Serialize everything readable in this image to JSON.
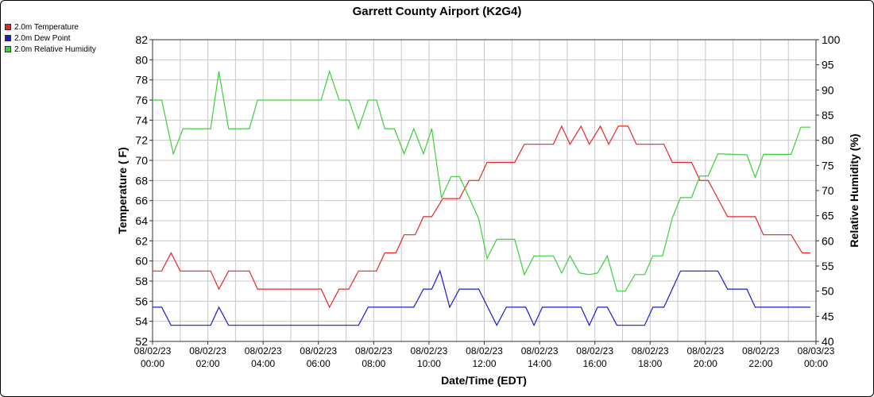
{
  "chart_data": {
    "type": "line",
    "title": "Garrett County Airport (K2G4)",
    "xlabel": "Date/Time (EDT)",
    "ylabel_left": "Temperature ( F)",
    "ylabel_right": "Relative Humidity (%)",
    "ylim_left": [
      52,
      82
    ],
    "ylim_right": [
      40,
      100
    ],
    "grid": true,
    "legend_position": "top-left",
    "x_ticks": [
      {
        "hour": 0,
        "date": "08/02/23",
        "time": "00:00"
      },
      {
        "hour": 2,
        "date": "08/02/23",
        "time": "02:00"
      },
      {
        "hour": 4,
        "date": "08/02/23",
        "time": "04:00"
      },
      {
        "hour": 6,
        "date": "08/02/23",
        "time": "06:00"
      },
      {
        "hour": 8,
        "date": "08/02/23",
        "time": "08:00"
      },
      {
        "hour": 10,
        "date": "08/02/23",
        "time": "10:00"
      },
      {
        "hour": 12,
        "date": "08/02/23",
        "time": "12:00"
      },
      {
        "hour": 14,
        "date": "08/02/23",
        "time": "14:00"
      },
      {
        "hour": 16,
        "date": "08/02/23",
        "time": "16:00"
      },
      {
        "hour": 18,
        "date": "08/02/23",
        "time": "18:00"
      },
      {
        "hour": 20,
        "date": "08/02/23",
        "time": "20:00"
      },
      {
        "hour": 22,
        "date": "08/02/23",
        "time": "22:00"
      },
      {
        "hour": 24,
        "date": "08/03/23",
        "time": "00:00"
      }
    ],
    "y_ticks_left": [
      "52",
      "54",
      "56",
      "58",
      "60",
      "62",
      "64",
      "66",
      "68",
      "70",
      "72",
      "74",
      "76",
      "78",
      "80",
      "82"
    ],
    "y_ticks_right": [
      "40",
      "45",
      "50",
      "55",
      "60",
      "65",
      "70",
      "75",
      "80",
      "85",
      "90",
      "95",
      "100"
    ],
    "series": [
      {
        "name": "2.0m Temperature",
        "axis": "left",
        "color": "#e8262a",
        "points": [
          [
            0,
            59
          ],
          [
            0.33,
            59
          ],
          [
            0.67,
            60.8
          ],
          [
            1,
            59
          ],
          [
            2.1,
            59
          ],
          [
            2.4,
            57.2
          ],
          [
            2.75,
            59
          ],
          [
            3.5,
            59
          ],
          [
            3.8,
            57.2
          ],
          [
            6.1,
            57.2
          ],
          [
            6.4,
            55.4
          ],
          [
            6.75,
            57.2
          ],
          [
            7.1,
            57.2
          ],
          [
            7.45,
            59
          ],
          [
            8.1,
            59
          ],
          [
            8.4,
            60.8
          ],
          [
            8.8,
            60.8
          ],
          [
            9.1,
            62.6
          ],
          [
            9.5,
            62.6
          ],
          [
            9.8,
            64.4
          ],
          [
            10.1,
            64.4
          ],
          [
            10.5,
            66.2
          ],
          [
            11.1,
            66.2
          ],
          [
            11.45,
            68
          ],
          [
            11.8,
            68
          ],
          [
            12.1,
            69.8
          ],
          [
            13.1,
            69.8
          ],
          [
            13.45,
            71.6
          ],
          [
            14.5,
            71.6
          ],
          [
            14.8,
            73.4
          ],
          [
            15.1,
            71.6
          ],
          [
            15.5,
            73.4
          ],
          [
            15.8,
            71.6
          ],
          [
            16.2,
            73.4
          ],
          [
            16.5,
            71.6
          ],
          [
            16.85,
            73.4
          ],
          [
            17.2,
            73.4
          ],
          [
            17.5,
            71.6
          ],
          [
            18.5,
            71.6
          ],
          [
            18.8,
            69.8
          ],
          [
            19.5,
            69.8
          ],
          [
            19.8,
            68
          ],
          [
            20.1,
            68
          ],
          [
            20.45,
            66.2
          ],
          [
            20.8,
            64.4
          ],
          [
            21.8,
            64.4
          ],
          [
            22.1,
            62.6
          ],
          [
            23.1,
            62.6
          ],
          [
            23.5,
            60.8
          ],
          [
            23.8,
            60.8
          ]
        ]
      },
      {
        "name": "2.0m Dew Point",
        "axis": "left",
        "color": "#1a1ad2",
        "points": [
          [
            0,
            55.4
          ],
          [
            0.33,
            55.4
          ],
          [
            0.67,
            53.6
          ],
          [
            2.1,
            53.6
          ],
          [
            2.4,
            55.4
          ],
          [
            2.75,
            53.6
          ],
          [
            7.45,
            53.6
          ],
          [
            7.8,
            55.4
          ],
          [
            9.45,
            55.4
          ],
          [
            9.8,
            57.2
          ],
          [
            10.1,
            57.2
          ],
          [
            10.4,
            59
          ],
          [
            10.75,
            55.4
          ],
          [
            11.1,
            57.2
          ],
          [
            11.8,
            57.2
          ],
          [
            12.45,
            53.6
          ],
          [
            12.8,
            55.4
          ],
          [
            13.5,
            55.4
          ],
          [
            13.8,
            53.6
          ],
          [
            14.1,
            55.4
          ],
          [
            15.5,
            55.4
          ],
          [
            15.8,
            53.6
          ],
          [
            16.1,
            55.4
          ],
          [
            16.45,
            55.4
          ],
          [
            16.8,
            53.6
          ],
          [
            17.8,
            53.6
          ],
          [
            18.1,
            55.4
          ],
          [
            18.5,
            55.4
          ],
          [
            18.8,
            57.2
          ],
          [
            19.1,
            59
          ],
          [
            20.45,
            59
          ],
          [
            20.8,
            57.2
          ],
          [
            21.5,
            57.2
          ],
          [
            21.8,
            55.4
          ],
          [
            23.8,
            55.4
          ]
        ]
      },
      {
        "name": "2.0m Relative Humidity",
        "axis": "right",
        "color": "#3bd13b",
        "points": [
          [
            0,
            88
          ],
          [
            0.33,
            88
          ],
          [
            0.75,
            77.3
          ],
          [
            1.1,
            82.3
          ],
          [
            2.1,
            82.3
          ],
          [
            2.4,
            93.7
          ],
          [
            2.75,
            82.3
          ],
          [
            3.5,
            82.3
          ],
          [
            3.8,
            88
          ],
          [
            6.1,
            88
          ],
          [
            6.4,
            93.7
          ],
          [
            6.75,
            88
          ],
          [
            7.1,
            88
          ],
          [
            7.45,
            82.3
          ],
          [
            7.8,
            88
          ],
          [
            8.1,
            88
          ],
          [
            8.4,
            82.3
          ],
          [
            8.75,
            82.3
          ],
          [
            9.1,
            77.3
          ],
          [
            9.45,
            82.3
          ],
          [
            9.8,
            77.3
          ],
          [
            10.1,
            82.3
          ],
          [
            10.45,
            68.6
          ],
          [
            10.8,
            72.8
          ],
          [
            11.1,
            72.8
          ],
          [
            11.45,
            68.6
          ],
          [
            11.8,
            64.4
          ],
          [
            12.1,
            56.5
          ],
          [
            12.45,
            60.3
          ],
          [
            13.1,
            60.3
          ],
          [
            13.45,
            53.3
          ],
          [
            13.8,
            57
          ],
          [
            14.5,
            57
          ],
          [
            14.8,
            53.6
          ],
          [
            15.1,
            57
          ],
          [
            15.45,
            53.6
          ],
          [
            15.8,
            53.3
          ],
          [
            16.1,
            53.6
          ],
          [
            16.45,
            57
          ],
          [
            16.8,
            50
          ],
          [
            17.1,
            50
          ],
          [
            17.45,
            53.3
          ],
          [
            17.8,
            53.3
          ],
          [
            18.1,
            57
          ],
          [
            18.45,
            57
          ],
          [
            18.8,
            64.5
          ],
          [
            19.1,
            68.6
          ],
          [
            19.5,
            68.6
          ],
          [
            19.8,
            72.9
          ],
          [
            20.1,
            72.9
          ],
          [
            20.45,
            77.3
          ],
          [
            21.5,
            77.1
          ],
          [
            21.8,
            72.6
          ],
          [
            22.1,
            77.2
          ],
          [
            23.1,
            77.2
          ],
          [
            23.45,
            82.6
          ],
          [
            23.8,
            82.6
          ]
        ]
      }
    ]
  }
}
